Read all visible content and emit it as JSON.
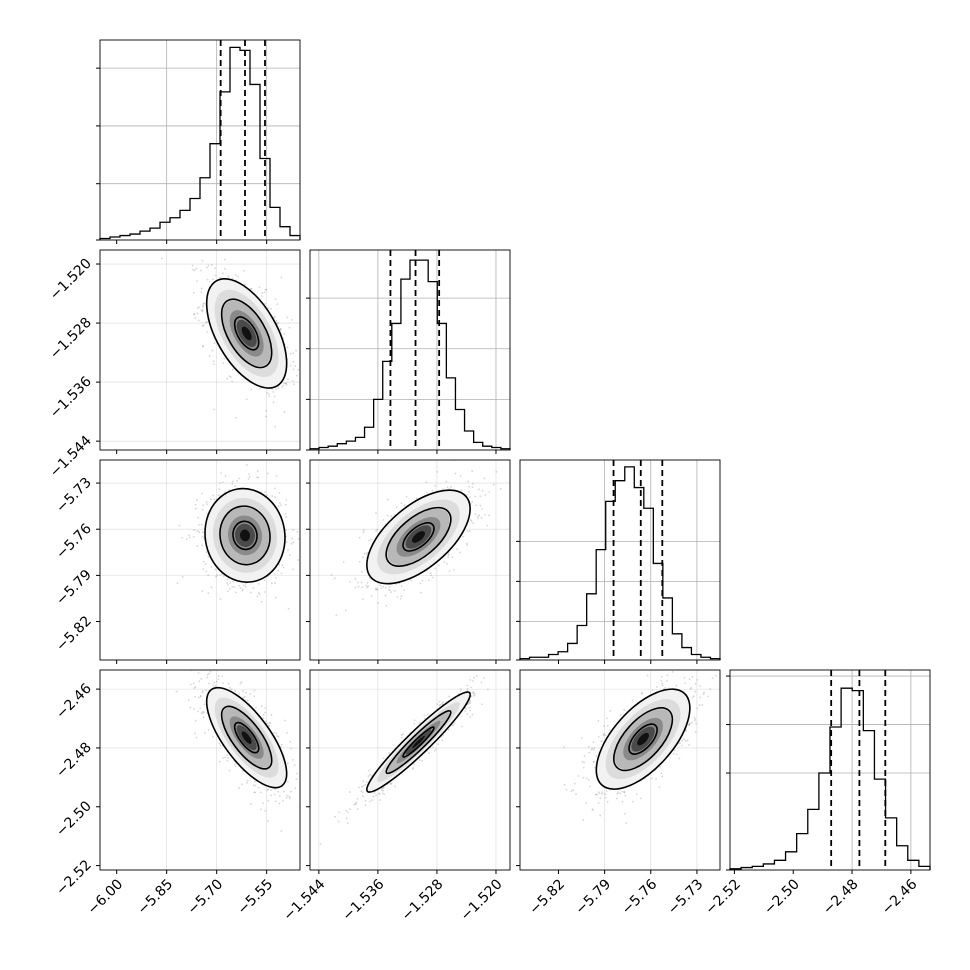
{
  "chart_data": {
    "type": "corner",
    "title": "",
    "parameters": [
      {
        "range": [
          -6.05,
          -5.45
        ],
        "ticks": [
          -6.0,
          -5.85,
          -5.7,
          -5.55
        ],
        "tick_labels": [
          "−6.00",
          "−5.85",
          "−5.70",
          "−5.55"
        ],
        "quantiles": [
          -5.688,
          -5.615,
          -5.555
        ],
        "grid_lines": [
          -5.85,
          -5.7,
          -5.55
        ]
      },
      {
        "range": [
          -1.5452,
          -1.5181
        ],
        "ticks": [
          -1.544,
          -1.536,
          -1.528,
          -1.52
        ],
        "tick_labels": [
          "−1.544",
          "−1.536",
          "−1.528",
          "−1.520"
        ],
        "quantiles": [
          -1.5343,
          -1.5309,
          -1.5277
        ],
        "grid_lines": [
          -1.544,
          -1.536,
          -1.528,
          -1.52
        ]
      },
      {
        "range": [
          -5.845,
          -5.715
        ],
        "ticks": [
          -5.82,
          -5.79,
          -5.76,
          -5.73
        ],
        "tick_labels": [
          "−5.82",
          "−5.79",
          "−5.76",
          "−5.73"
        ],
        "quantiles": [
          -5.7842,
          -5.7665,
          -5.7525
        ],
        "grid_lines": [
          -5.79,
          -5.76,
          -5.73
        ]
      },
      {
        "range": [
          -2.5215,
          -2.4535
        ],
        "ticks": [
          -2.52,
          -2.5,
          -2.48,
          -2.46
        ],
        "tick_labels": [
          "−2.52",
          "−2.50",
          "−2.48",
          "−2.46"
        ],
        "quantiles": [
          -2.4871,
          -2.4775,
          -2.4687
        ],
        "grid_lines": [
          -2.48,
          -2.46
        ]
      }
    ],
    "histograms": [
      {
        "counts": [
          1,
          2,
          3,
          4,
          6,
          8,
          12,
          15,
          20,
          28,
          42,
          65,
          100,
          130,
          128,
          105,
          55,
          22,
          9,
          3
        ],
        "ymax": 135,
        "ticks": [
          0,
          38,
          77,
          116
        ]
      },
      {
        "counts": [
          1,
          2,
          3,
          5,
          7,
          10,
          18,
          40,
          70,
          100,
          135,
          150,
          150,
          133,
          100,
          57,
          32,
          15,
          6,
          3,
          2,
          1
        ],
        "ymax": 158,
        "ticks": [
          0,
          40,
          80,
          120
        ]
      },
      {
        "counts": [
          1,
          2,
          2,
          4,
          6,
          12,
          25,
          48,
          80,
          115,
          130,
          140,
          125,
          110,
          70,
          45,
          19,
          9,
          4,
          2,
          1
        ],
        "ymax": 145,
        "ticks": [
          0,
          28,
          57,
          86
        ]
      },
      {
        "counts": [
          1,
          2,
          3,
          5,
          8,
          15,
          30,
          50,
          80,
          118,
          150,
          148,
          115,
          75,
          43,
          20,
          8,
          3
        ],
        "ymax": 165,
        "ticks": [
          0,
          80,
          120,
          160
        ]
      }
    ],
    "pairs": [
      {
        "row": 1,
        "col": 0,
        "center": [
          -5.61,
          -1.5294
        ],
        "sigma": [
          0.06,
          0.0037
        ],
        "rho": -0.55
      },
      {
        "row": 2,
        "col": 0,
        "center": [
          -5.615,
          -5.764
        ],
        "sigma": [
          0.06,
          0.0152
        ],
        "rho": -0.05
      },
      {
        "row": 2,
        "col": 1,
        "center": [
          -1.5305,
          -5.765
        ],
        "sigma": [
          0.0035,
          0.0152
        ],
        "rho": 0.6
      },
      {
        "row": 3,
        "col": 0,
        "center": [
          -5.61,
          -2.4765
        ],
        "sigma": [
          0.06,
          0.0085
        ],
        "rho": -0.72
      },
      {
        "row": 3,
        "col": 1,
        "center": [
          -1.5305,
          -2.478
        ],
        "sigma": [
          0.0035,
          0.0085
        ],
        "rho": 0.95
      },
      {
        "row": 3,
        "col": 2,
        "center": [
          -5.765,
          -2.477
        ],
        "sigma": [
          0.0152,
          0.0085
        ],
        "rho": 0.62
      }
    ]
  }
}
